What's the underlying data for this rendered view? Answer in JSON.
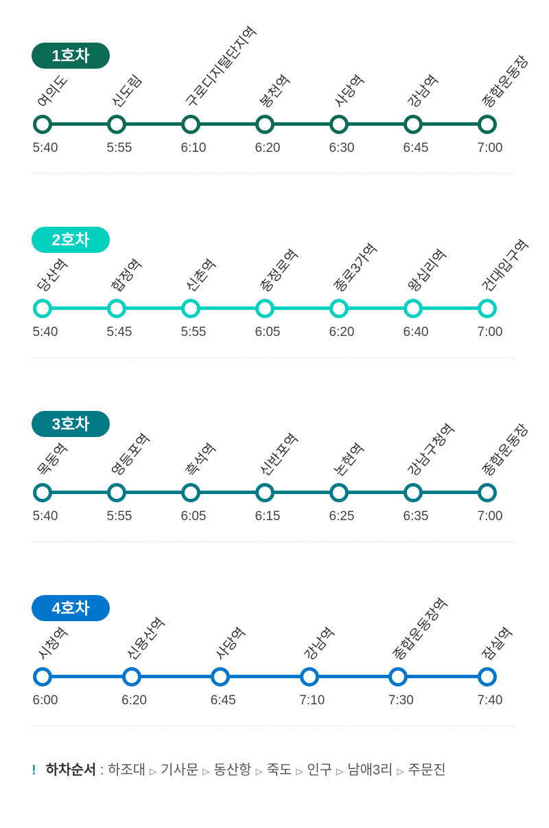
{
  "routes": [
    {
      "label": "1호차",
      "color": "#0b6b55",
      "stops": [
        {
          "name": "여의도",
          "time": "5:40"
        },
        {
          "name": "신도림",
          "time": "5:55"
        },
        {
          "name": "구로디지털단지역",
          "time": "6:10"
        },
        {
          "name": "봉천역",
          "time": "6:20"
        },
        {
          "name": "사당역",
          "time": "6:30"
        },
        {
          "name": "강남역",
          "time": "6:45"
        },
        {
          "name": "종합운동장",
          "time": "7:00"
        }
      ]
    },
    {
      "label": "2호차",
      "color": "#00d0c0",
      "stops": [
        {
          "name": "당산역",
          "time": "5:40"
        },
        {
          "name": "합정역",
          "time": "5:45"
        },
        {
          "name": "신촌역",
          "time": "5:55"
        },
        {
          "name": "충정로역",
          "time": "6:05"
        },
        {
          "name": "종로3가역",
          "time": "6:20"
        },
        {
          "name": "왕십리역",
          "time": "6:40"
        },
        {
          "name": "건대입구역",
          "time": "7:00"
        }
      ]
    },
    {
      "label": "3호차",
      "color": "#007a87",
      "stops": [
        {
          "name": "목동역",
          "time": "5:40"
        },
        {
          "name": "영등포역",
          "time": "5:55"
        },
        {
          "name": "흑석역",
          "time": "6:05"
        },
        {
          "name": "신반포역",
          "time": "6:15"
        },
        {
          "name": "논현역",
          "time": "6:25"
        },
        {
          "name": "강남구청역",
          "time": "6:35"
        },
        {
          "name": "종합운동장",
          "time": "7:00"
        }
      ]
    },
    {
      "label": "4호차",
      "color": "#0077cc",
      "stops": [
        {
          "name": "시청역",
          "time": "6:00"
        },
        {
          "name": "신용산역",
          "time": "6:20"
        },
        {
          "name": "사당역",
          "time": "6:45"
        },
        {
          "name": "강남역",
          "time": "7:10"
        },
        {
          "name": "종합운동장역",
          "time": "7:30"
        },
        {
          "name": "잠실역",
          "time": "7:40"
        }
      ]
    }
  ],
  "note": {
    "mark": "!",
    "label": "하차순서",
    "colon": " : ",
    "arrow": "▷",
    "stops": [
      "하조대",
      "기사문",
      "동산항",
      "죽도",
      "인구",
      "남애3리",
      "주문진"
    ]
  }
}
